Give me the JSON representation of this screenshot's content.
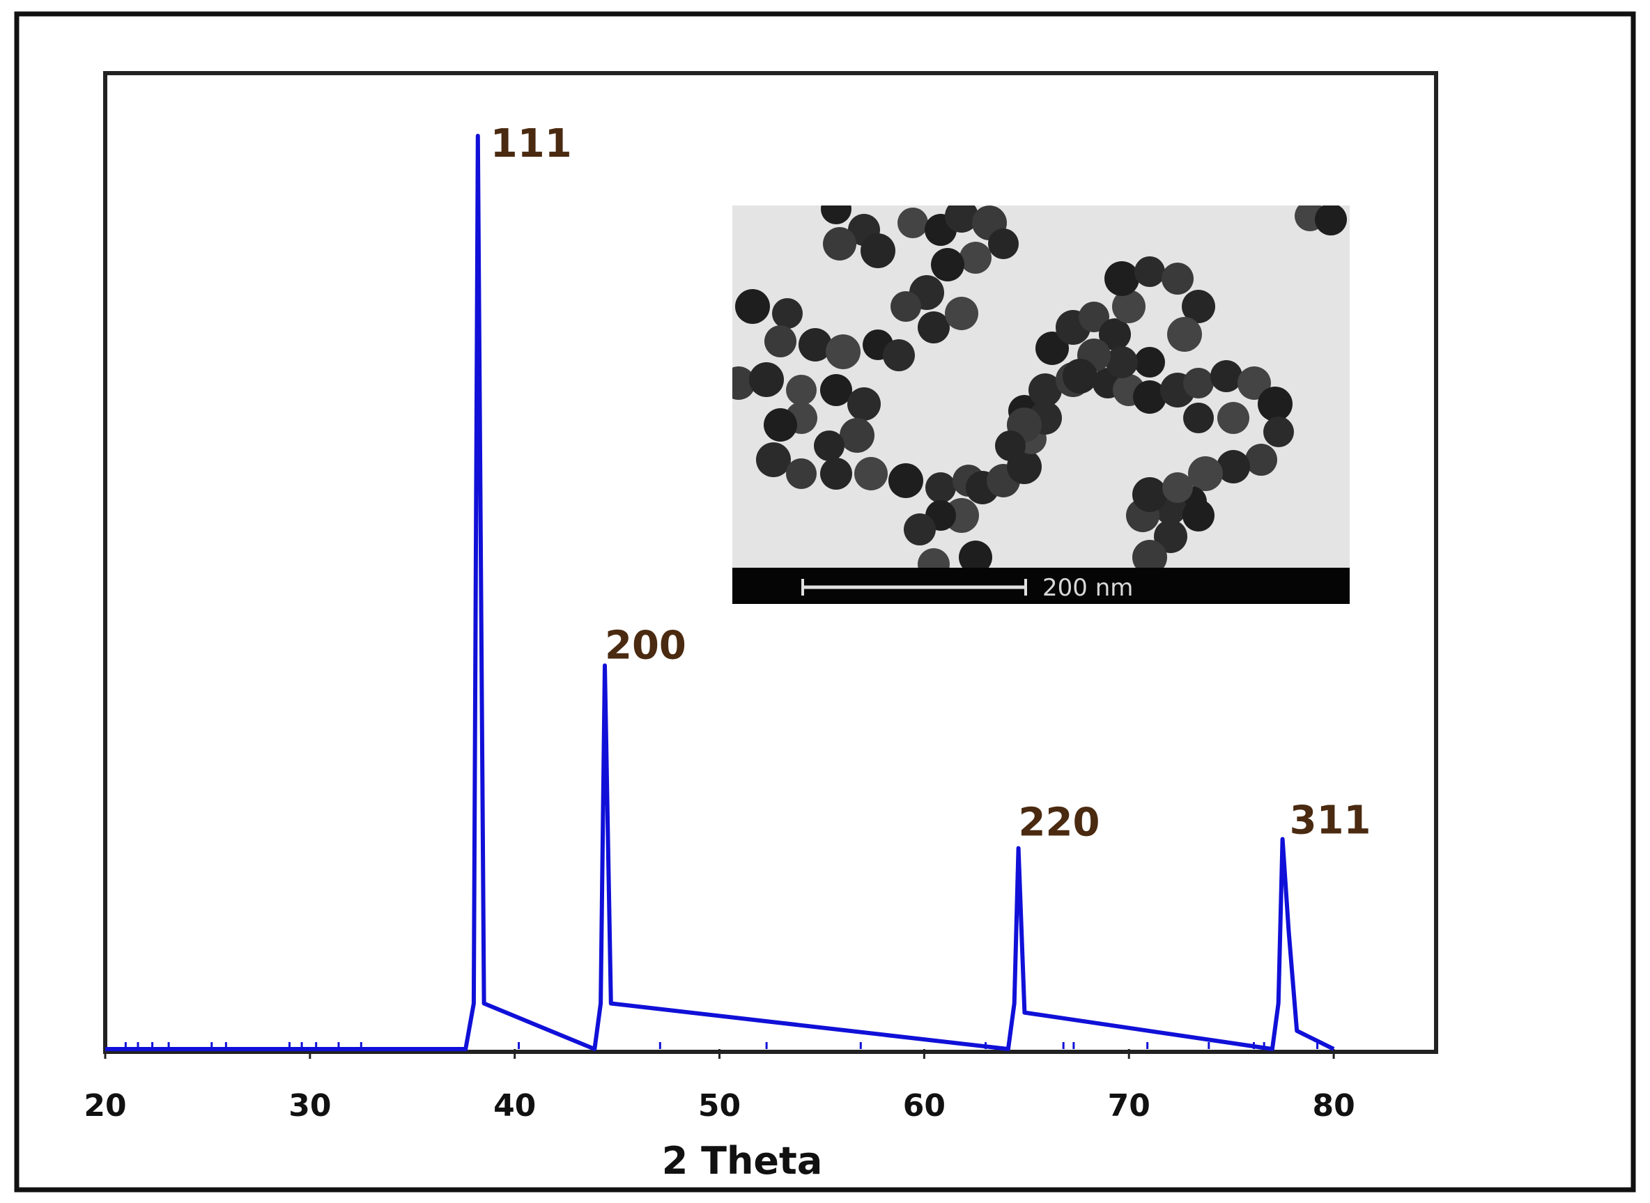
{
  "chart_data": {
    "type": "line",
    "title": "",
    "xlabel": "2 Theta",
    "ylabel": "",
    "xlim": [
      20,
      85
    ],
    "ylim": [
      0,
      1.0
    ],
    "x_ticks": [
      20,
      30,
      40,
      50,
      60,
      70,
      80
    ],
    "grid": false,
    "legend": "none",
    "series_color": "#1010d8",
    "series": [
      {
        "values": [
          {
            "x": 20,
            "y": 0.0
          },
          {
            "x": 37.6,
            "y": 0.0
          },
          {
            "x": 38.0,
            "y": 0.05
          },
          {
            "x": 38.2,
            "y": 1.0
          },
          {
            "x": 38.5,
            "y": 0.05
          },
          {
            "x": 43.9,
            "y": 0.0
          },
          {
            "x": 44.2,
            "y": 0.05
          },
          {
            "x": 44.4,
            "y": 0.42
          },
          {
            "x": 44.7,
            "y": 0.05
          },
          {
            "x": 64.1,
            "y": 0.0
          },
          {
            "x": 64.4,
            "y": 0.05
          },
          {
            "x": 64.6,
            "y": 0.22
          },
          {
            "x": 64.9,
            "y": 0.04
          },
          {
            "x": 77.0,
            "y": 0.0
          },
          {
            "x": 77.3,
            "y": 0.05
          },
          {
            "x": 77.5,
            "y": 0.23
          },
          {
            "x": 77.8,
            "y": 0.13
          },
          {
            "x": 78.2,
            "y": 0.02
          },
          {
            "x": 80,
            "y": 0.0
          }
        ]
      }
    ],
    "annotations": [
      {
        "text": "111",
        "x": 38.2,
        "y": 1.0
      },
      {
        "text": "200",
        "x": 44.4,
        "y": 0.42
      },
      {
        "text": "220",
        "x": 64.6,
        "y": 0.22
      },
      {
        "text": "311",
        "x": 77.5,
        "y": 0.23
      }
    ]
  },
  "inset": {
    "image_type": "TEM micrograph of nanoparticle chains",
    "scale_bar_label": "200 nm"
  }
}
